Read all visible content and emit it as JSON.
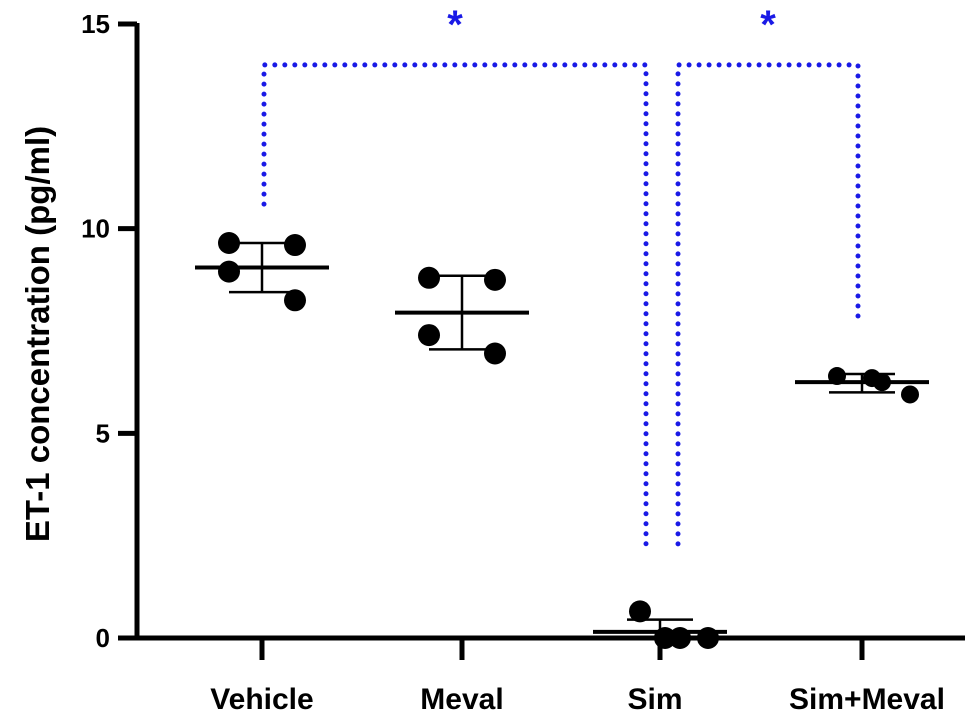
{
  "chart_data": {
    "type": "scatter",
    "title": "",
    "xlabel": "",
    "ylabel": "ET-1 concentration (pg/ml)",
    "ylim": [
      0,
      15
    ],
    "yticks": [
      0,
      5,
      10,
      15
    ],
    "ytick_labels": [
      "0",
      "5",
      "10",
      "15"
    ],
    "grid": false,
    "legend": "none",
    "categories": [
      "Vehicle",
      "Meval",
      "Sim",
      "Sim+Meval"
    ],
    "groups": [
      {
        "name": "Vehicle",
        "points": [
          9.65,
          9.6,
          8.95,
          8.25
        ],
        "mean": 9.05,
        "sd_low": 8.45,
        "sd_high": 9.65
      },
      {
        "name": "Meval",
        "points": [
          8.8,
          8.75,
          7.4,
          6.95
        ],
        "mean": 7.95,
        "sd_low": 7.05,
        "sd_high": 8.85
      },
      {
        "name": "Sim",
        "points": [
          0.65,
          0.0,
          0.0,
          0.0
        ],
        "mean": 0.15,
        "sd_low": -0.1,
        "sd_high": 0.45
      },
      {
        "name": "Sim+Meval",
        "points": [
          6.4,
          6.35,
          6.25,
          5.95
        ],
        "mean": 6.25,
        "sd_low": 6.0,
        "sd_high": 6.45
      }
    ],
    "annotations": [
      {
        "label": "*",
        "from": "Vehicle",
        "to": "Sim",
        "bracket_y": 14.0,
        "left_drop_to": 10.6,
        "right_drop_to": 2.2,
        "color": "#1a1ae6",
        "style": "dotted"
      },
      {
        "label": "*",
        "from": "Sim",
        "to": "Sim+Meval",
        "bracket_y": 14.0,
        "left_drop_to": 2.3,
        "right_drop_to": 7.7,
        "color": "#1a1ae6",
        "style": "dotted"
      }
    ],
    "colors": {
      "points": "#000000",
      "axis": "#000000",
      "significance": "#1a1ae6"
    }
  }
}
